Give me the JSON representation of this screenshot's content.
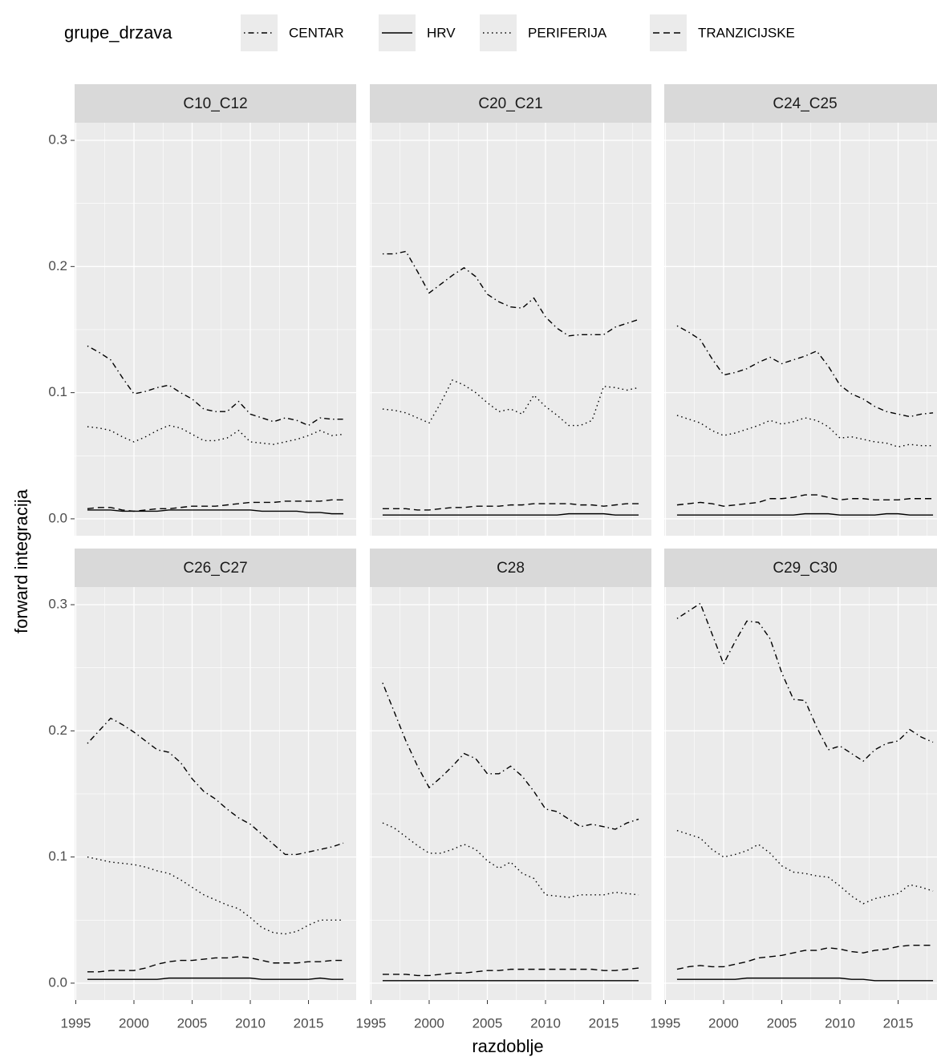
{
  "chart_data": {
    "type": "line",
    "legend_title": "grupe_drzava",
    "xlabel": "razdoblje",
    "ylabel": "forward integracija",
    "x": [
      1996,
      1997,
      1998,
      1999,
      2000,
      2001,
      2002,
      2003,
      2004,
      2005,
      2006,
      2007,
      2008,
      2009,
      2010,
      2011,
      2012,
      2013,
      2014,
      2015,
      2016,
      2017,
      2018
    ],
    "xlim": [
      1994.9,
      2019.1
    ],
    "xticks": [
      1995,
      2000,
      2005,
      2010,
      2015
    ],
    "ylim": [
      -0.0134,
      0.314
    ],
    "yticks": [
      {
        "value": 0,
        "label": "0.0"
      },
      0.1,
      0.2,
      0.3
    ],
    "grid": true,
    "series": [
      {
        "name": "CENTAR",
        "color": "#000000",
        "linetype": "dotdash"
      },
      {
        "name": "HRV",
        "color": "#000000",
        "linetype": "solid"
      },
      {
        "name": "PERIFERIJA",
        "color": "#000000",
        "linetype": "dotted"
      },
      {
        "name": "TRANZICIJSKE",
        "color": "#000000",
        "linetype": "dashed"
      }
    ],
    "facets": [
      {
        "title": "C10_C12",
        "values": [
          [
            0.137,
            0.132,
            0.126,
            0.112,
            0.099,
            0.101,
            0.104,
            0.106,
            0.1,
            0.095,
            0.087,
            0.085,
            0.085,
            0.093,
            0.083,
            0.08,
            0.077,
            0.08,
            0.078,
            0.074,
            0.08,
            0.079,
            0.079
          ],
          [
            0.007,
            0.007,
            0.007,
            0.006,
            0.006,
            0.006,
            0.006,
            0.007,
            0.007,
            0.007,
            0.007,
            0.007,
            0.007,
            0.007,
            0.007,
            0.006,
            0.006,
            0.006,
            0.006,
            0.005,
            0.005,
            0.004,
            0.004
          ],
          [
            0.073,
            0.072,
            0.07,
            0.065,
            0.061,
            0.065,
            0.07,
            0.074,
            0.072,
            0.067,
            0.062,
            0.062,
            0.064,
            0.07,
            0.061,
            0.06,
            0.059,
            0.061,
            0.063,
            0.066,
            0.07,
            0.066,
            0.067
          ],
          [
            0.008,
            0.009,
            0.009,
            0.007,
            0.006,
            0.007,
            0.008,
            0.008,
            0.009,
            0.01,
            0.01,
            0.01,
            0.011,
            0.012,
            0.013,
            0.013,
            0.013,
            0.014,
            0.014,
            0.014,
            0.014,
            0.015,
            0.015
          ]
        ]
      },
      {
        "title": "C20_C21",
        "values": [
          [
            0.21,
            0.21,
            0.212,
            0.196,
            0.179,
            0.186,
            0.193,
            0.199,
            0.192,
            0.178,
            0.172,
            0.168,
            0.167,
            0.175,
            0.16,
            0.151,
            0.145,
            0.146,
            0.146,
            0.146,
            0.152,
            0.155,
            0.158
          ],
          [
            0.003,
            0.003,
            0.003,
            0.003,
            0.003,
            0.003,
            0.003,
            0.003,
            0.003,
            0.003,
            0.003,
            0.003,
            0.003,
            0.003,
            0.003,
            0.003,
            0.004,
            0.004,
            0.004,
            0.004,
            0.003,
            0.003,
            0.003
          ],
          [
            0.087,
            0.086,
            0.084,
            0.08,
            0.076,
            0.092,
            0.11,
            0.106,
            0.1,
            0.092,
            0.085,
            0.087,
            0.083,
            0.098,
            0.089,
            0.082,
            0.074,
            0.074,
            0.078,
            0.105,
            0.104,
            0.102,
            0.104
          ],
          [
            0.008,
            0.008,
            0.008,
            0.007,
            0.007,
            0.008,
            0.009,
            0.009,
            0.01,
            0.01,
            0.01,
            0.011,
            0.011,
            0.012,
            0.012,
            0.012,
            0.012,
            0.011,
            0.011,
            0.01,
            0.011,
            0.012,
            0.012
          ]
        ]
      },
      {
        "title": "C24_C25",
        "values": [
          [
            0.153,
            0.148,
            0.142,
            0.127,
            0.114,
            0.116,
            0.119,
            0.124,
            0.128,
            0.123,
            0.126,
            0.129,
            0.133,
            0.121,
            0.106,
            0.099,
            0.095,
            0.089,
            0.085,
            0.083,
            0.081,
            0.083,
            0.084
          ],
          [
            0.003,
            0.003,
            0.003,
            0.003,
            0.003,
            0.003,
            0.003,
            0.003,
            0.003,
            0.003,
            0.003,
            0.004,
            0.004,
            0.004,
            0.003,
            0.003,
            0.003,
            0.003,
            0.004,
            0.004,
            0.003,
            0.003,
            0.003
          ],
          [
            0.082,
            0.079,
            0.076,
            0.07,
            0.066,
            0.068,
            0.071,
            0.074,
            0.078,
            0.075,
            0.077,
            0.08,
            0.078,
            0.073,
            0.064,
            0.065,
            0.063,
            0.061,
            0.06,
            0.057,
            0.059,
            0.058,
            0.058
          ],
          [
            0.011,
            0.012,
            0.013,
            0.012,
            0.01,
            0.011,
            0.012,
            0.013,
            0.016,
            0.016,
            0.017,
            0.019,
            0.019,
            0.017,
            0.015,
            0.016,
            0.016,
            0.015,
            0.015,
            0.015,
            0.016,
            0.016,
            0.016
          ]
        ]
      },
      {
        "title": "C26_C27",
        "values": [
          [
            0.19,
            0.2,
            0.21,
            0.205,
            0.199,
            0.192,
            0.185,
            0.183,
            0.175,
            0.162,
            0.152,
            0.146,
            0.138,
            0.131,
            0.126,
            0.118,
            0.11,
            0.102,
            0.102,
            0.104,
            0.106,
            0.108,
            0.111
          ],
          [
            0.003,
            0.003,
            0.003,
            0.003,
            0.003,
            0.003,
            0.003,
            0.004,
            0.004,
            0.004,
            0.004,
            0.004,
            0.004,
            0.004,
            0.004,
            0.003,
            0.003,
            0.003,
            0.003,
            0.003,
            0.004,
            0.003,
            0.003
          ],
          [
            0.1,
            0.098,
            0.096,
            0.095,
            0.094,
            0.092,
            0.089,
            0.087,
            0.082,
            0.076,
            0.07,
            0.066,
            0.062,
            0.059,
            0.052,
            0.044,
            0.04,
            0.039,
            0.041,
            0.046,
            0.05,
            0.05,
            0.05
          ],
          [
            0.009,
            0.009,
            0.01,
            0.01,
            0.01,
            0.012,
            0.015,
            0.017,
            0.018,
            0.018,
            0.019,
            0.02,
            0.02,
            0.021,
            0.02,
            0.018,
            0.016,
            0.016,
            0.016,
            0.017,
            0.017,
            0.018,
            0.018
          ]
        ]
      },
      {
        "title": "C28",
        "values": [
          [
            0.238,
            0.215,
            0.192,
            0.172,
            0.155,
            0.163,
            0.172,
            0.182,
            0.178,
            0.166,
            0.166,
            0.172,
            0.164,
            0.152,
            0.138,
            0.136,
            0.13,
            0.124,
            0.126,
            0.124,
            0.122,
            0.127,
            0.13
          ],
          [
            0.002,
            0.002,
            0.002,
            0.002,
            0.002,
            0.002,
            0.002,
            0.002,
            0.002,
            0.002,
            0.002,
            0.002,
            0.002,
            0.002,
            0.002,
            0.002,
            0.002,
            0.002,
            0.002,
            0.002,
            0.002,
            0.002,
            0.002
          ],
          [
            0.127,
            0.123,
            0.116,
            0.109,
            0.103,
            0.103,
            0.106,
            0.11,
            0.106,
            0.097,
            0.091,
            0.096,
            0.087,
            0.083,
            0.07,
            0.069,
            0.068,
            0.07,
            0.07,
            0.07,
            0.072,
            0.071,
            0.07
          ],
          [
            0.007,
            0.007,
            0.007,
            0.006,
            0.006,
            0.007,
            0.008,
            0.008,
            0.009,
            0.01,
            0.01,
            0.011,
            0.011,
            0.011,
            0.011,
            0.011,
            0.011,
            0.011,
            0.011,
            0.01,
            0.01,
            0.011,
            0.012
          ]
        ]
      },
      {
        "title": "C29_C30",
        "values": [
          [
            0.289,
            0.295,
            0.301,
            0.277,
            0.253,
            0.271,
            0.287,
            0.286,
            0.273,
            0.246,
            0.225,
            0.224,
            0.203,
            0.185,
            0.188,
            0.182,
            0.176,
            0.185,
            0.19,
            0.192,
            0.201,
            0.195,
            0.191
          ],
          [
            0.003,
            0.003,
            0.003,
            0.003,
            0.003,
            0.003,
            0.004,
            0.004,
            0.004,
            0.004,
            0.004,
            0.004,
            0.004,
            0.004,
            0.004,
            0.003,
            0.003,
            0.002,
            0.002,
            0.002,
            0.002,
            0.002,
            0.002
          ],
          [
            0.121,
            0.118,
            0.115,
            0.106,
            0.1,
            0.102,
            0.105,
            0.11,
            0.103,
            0.093,
            0.088,
            0.087,
            0.085,
            0.084,
            0.077,
            0.069,
            0.063,
            0.067,
            0.069,
            0.071,
            0.078,
            0.076,
            0.073
          ],
          [
            0.011,
            0.013,
            0.014,
            0.013,
            0.013,
            0.015,
            0.017,
            0.02,
            0.021,
            0.022,
            0.024,
            0.026,
            0.026,
            0.028,
            0.027,
            0.025,
            0.024,
            0.026,
            0.027,
            0.029,
            0.03,
            0.03,
            0.03
          ]
        ]
      }
    ]
  }
}
